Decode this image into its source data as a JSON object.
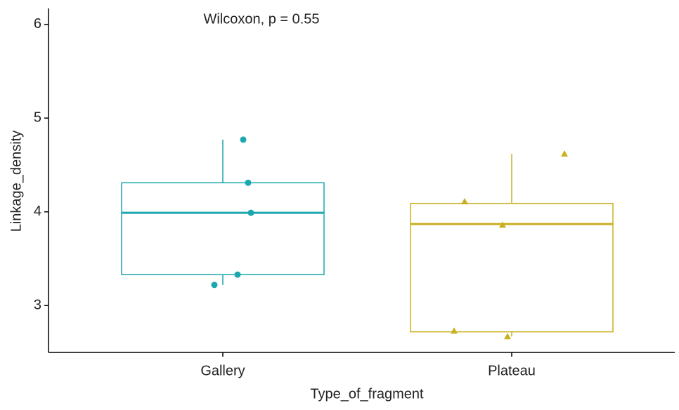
{
  "chart_data": {
    "type": "box",
    "annotation": "Wilcoxon, p = 0.55",
    "xlabel": "Type_of_fragment",
    "ylabel": "Linkage_density",
    "categories": [
      "Gallery",
      "Plateau"
    ],
    "colors": [
      "#1aa7b0",
      "#c8b01e"
    ],
    "shapes": [
      "circle",
      "triangle"
    ],
    "boxes": [
      {
        "min": 3.22,
        "q1": 3.33,
        "median": 3.99,
        "q3": 4.31,
        "max": 4.77
      },
      {
        "min": 2.67,
        "q1": 2.72,
        "median": 3.87,
        "q3": 4.09,
        "max": 4.62
      }
    ],
    "points": [
      [
        4.77,
        4.31,
        3.99,
        3.33,
        3.22
      ],
      [
        4.11,
        3.86,
        2.73,
        2.67,
        4.62
      ]
    ],
    "ylim": [
      2.5,
      6.17
    ],
    "yticks": [
      3,
      4,
      5,
      6
    ]
  }
}
